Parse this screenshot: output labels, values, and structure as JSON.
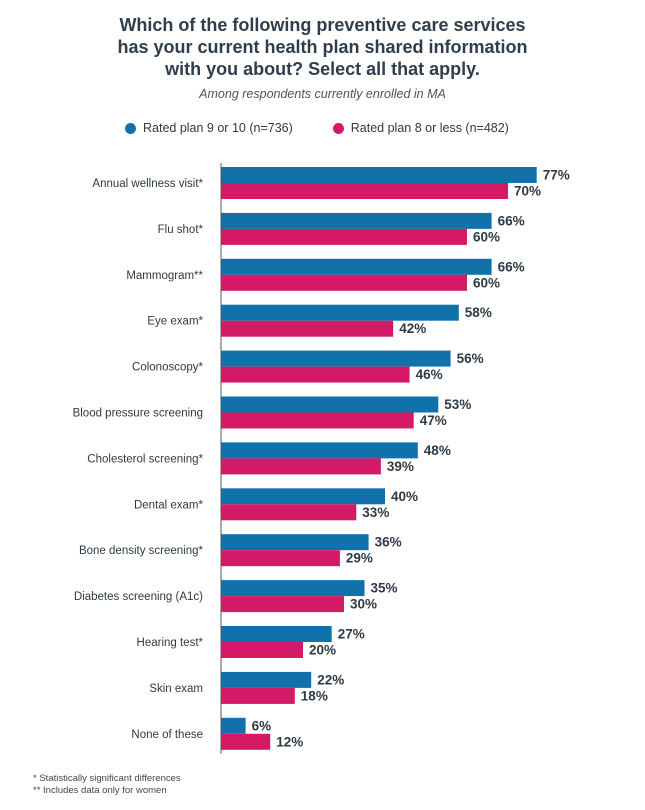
{
  "title_lines": [
    "Which of the following preventive care services",
    "has your current health plan shared information",
    "with you about? Select all that apply."
  ],
  "subtitle": "Among respondents currently enrolled in MA",
  "colors": {
    "series1": "#1172ab",
    "series2": "#d41a66",
    "axis": "#555555",
    "label": "#2e3a45"
  },
  "footnotes": [
    "* Statistically significant differences",
    "** Includes data only for women"
  ],
  "chart_data": {
    "type": "bar",
    "orientation": "horizontal",
    "categories": [
      "Annual wellness visit*",
      "Flu shot*",
      "Mammogram**",
      "Eye exam*",
      "Colonoscopy*",
      "Blood pressure screening",
      "Cholesterol screening*",
      "Dental exam*",
      "Bone density screening*",
      "Diabetes screening (A1c)",
      "Hearing test*",
      "Skin exam",
      "None of these"
    ],
    "series": [
      {
        "name": "Rated plan 9 or 10 (n=736)",
        "values": [
          77,
          66,
          66,
          58,
          56,
          53,
          48,
          40,
          36,
          35,
          27,
          22,
          6
        ]
      },
      {
        "name": "Rated plan 8 or less (n=482)",
        "values": [
          70,
          60,
          60,
          42,
          46,
          47,
          39,
          33,
          29,
          30,
          20,
          18,
          12
        ]
      }
    ],
    "value_suffix": "%",
    "xlim": [
      0,
      100
    ],
    "legend_position": "top",
    "grid": false
  }
}
